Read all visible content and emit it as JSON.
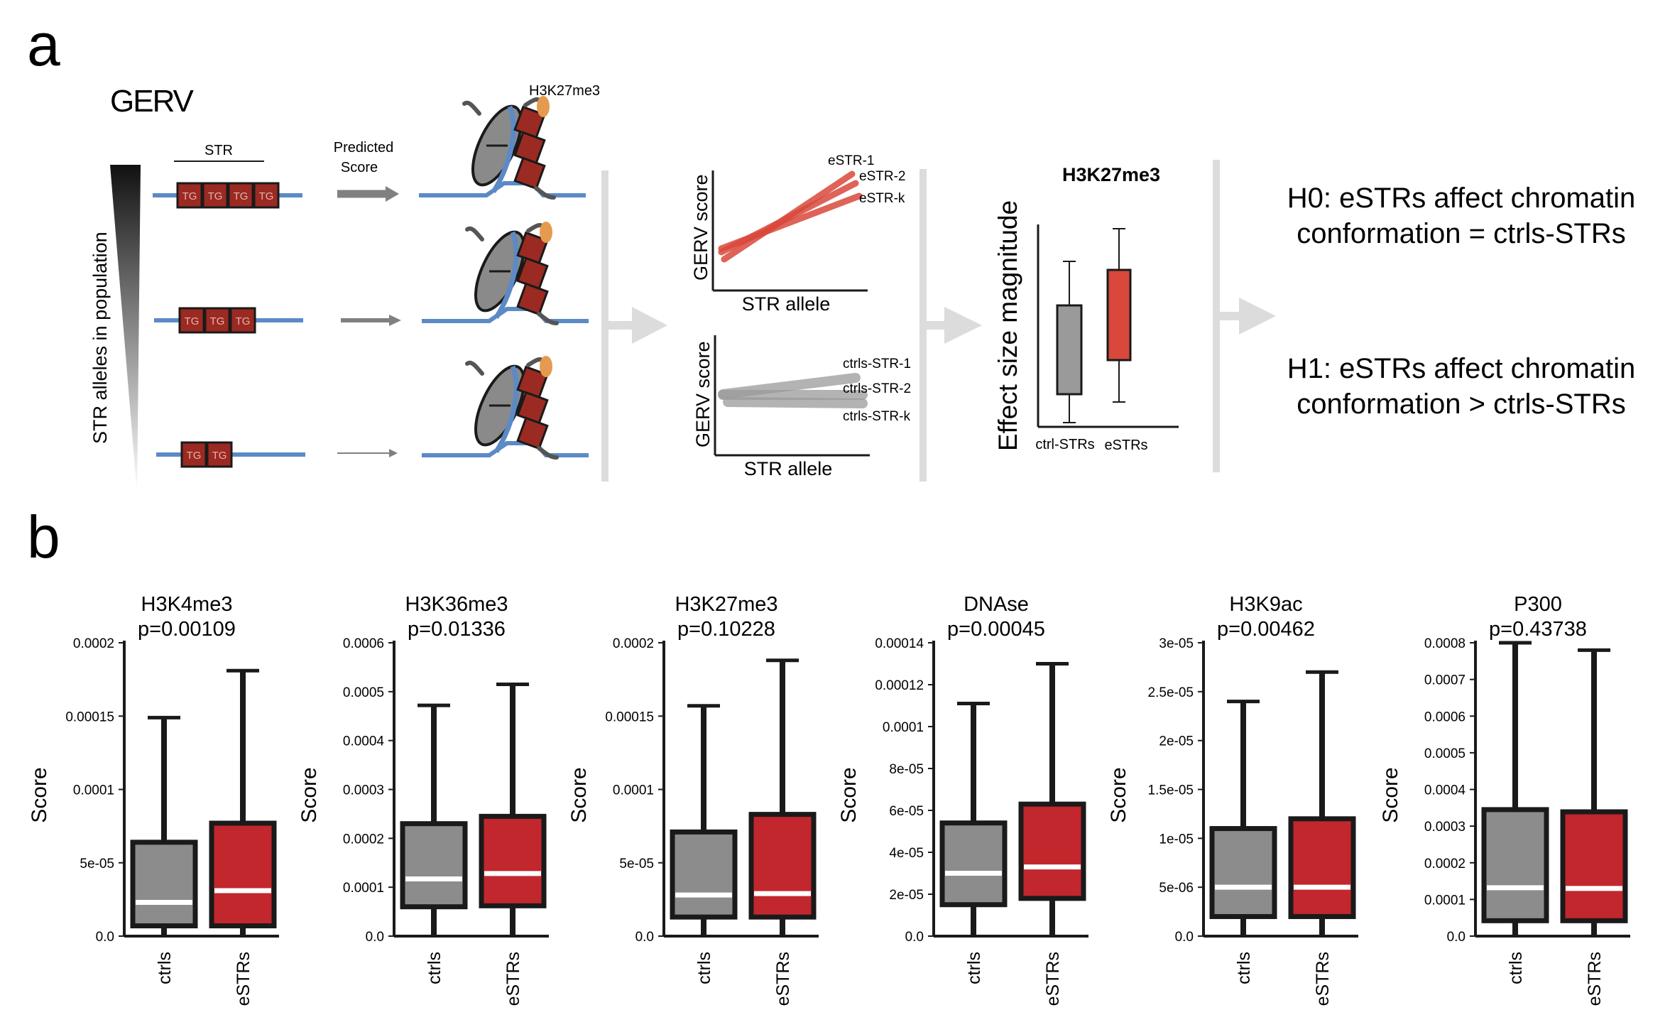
{
  "panel_a": {
    "letter": "a",
    "gerv_label": "GERV",
    "population_label": "STR alleles in population",
    "str_label": "STR",
    "repeat_unit": "TG",
    "predicted_label_1": "Predicted",
    "predicted_label_2": "Score",
    "mark_label": "H3K27me3",
    "estr_plot": {
      "ylabel": "GERV score",
      "xlabel": "STR allele",
      "lines": [
        "eSTR-1",
        "eSTR-2",
        "eSTR-k"
      ]
    },
    "ctrl_plot": {
      "ylabel": "GERV score",
      "xlabel": "STR allele",
      "lines": [
        "ctrls-STR-1",
        "ctrls-STR-2",
        "ctrls-STR-k"
      ]
    },
    "effect_plot": {
      "title": "H3K27me3",
      "ylabel": "Effect size magnitude",
      "categories": [
        "ctrl-STRs",
        "eSTRs"
      ]
    },
    "h0_line1": "H0: eSTRs affect chromatin",
    "h0_line2": "conformation = ctrls-STRs",
    "h1_line1": "H1: eSTRs affect chromatin",
    "h1_line2": "conformation > ctrls-STRs",
    "colors": {
      "estr_red": "#d9483b",
      "ctrl_gray": "#9a9a9a",
      "dna_blue": "#5b8ac6",
      "repeat_box": "#9b2a22",
      "mark": "#e69a4f",
      "arrow_gray": "#dcdcdc"
    }
  },
  "panel_b": {
    "letter": "b",
    "ylabel": "Score",
    "categories": [
      "ctrls",
      "eSTRs"
    ],
    "colors": {
      "ctrls": "#8c8c8c",
      "eSTRs": "#c1272d",
      "median": "#ffffff",
      "outline": "#1a1a1a"
    }
  },
  "chart_data": [
    {
      "type": "box",
      "title": "H3K4me3",
      "pvalue": "p=0.00109",
      "ylabel": "Score",
      "ylim": [
        0,
        0.0002
      ],
      "yticks": [
        "0.0",
        "5e-05",
        "0.0001",
        "0.00015",
        "0.0002"
      ],
      "ytick_values": [
        0,
        5e-05,
        0.0001,
        0.00015,
        0.0002
      ],
      "categories": [
        "ctrls",
        "eSTRs"
      ],
      "boxes": [
        {
          "name": "ctrls",
          "whislo": 0,
          "q1": 7e-06,
          "med": 2.3e-05,
          "q3": 6.4e-05,
          "whishi": 0.000149
        },
        {
          "name": "eSTRs",
          "whislo": 0,
          "q1": 7e-06,
          "med": 3.1e-05,
          "q3": 7.7e-05,
          "whishi": 0.000181
        }
      ]
    },
    {
      "type": "box",
      "title": "H3K36me3",
      "pvalue": "p=0.01336",
      "ylabel": "Score",
      "ylim": [
        0,
        0.0006
      ],
      "yticks": [
        "0.0",
        "0.0001",
        "0.0002",
        "0.0003",
        "0.0004",
        "0.0005",
        "0.0006"
      ],
      "ytick_values": [
        0,
        0.0001,
        0.0002,
        0.0003,
        0.0004,
        0.0005,
        0.0006
      ],
      "categories": [
        "ctrls",
        "eSTRs"
      ],
      "boxes": [
        {
          "name": "ctrls",
          "whislo": 0,
          "q1": 6e-05,
          "med": 0.000117,
          "q3": 0.00023,
          "whishi": 0.000472
        },
        {
          "name": "eSTRs",
          "whislo": 0,
          "q1": 6.2e-05,
          "med": 0.000128,
          "q3": 0.000245,
          "whishi": 0.000515
        }
      ]
    },
    {
      "type": "box",
      "title": "H3K27me3",
      "pvalue": "p=0.10228",
      "ylabel": "Score",
      "ylim": [
        0,
        0.0002
      ],
      "yticks": [
        "0.0",
        "5e-05",
        "0.0001",
        "0.00015",
        "0.0002"
      ],
      "ytick_values": [
        0,
        5e-05,
        0.0001,
        0.00015,
        0.0002
      ],
      "categories": [
        "ctrls",
        "eSTRs"
      ],
      "boxes": [
        {
          "name": "ctrls",
          "whislo": 0,
          "q1": 1.3e-05,
          "med": 2.8e-05,
          "q3": 7.1e-05,
          "whishi": 0.000157
        },
        {
          "name": "eSTRs",
          "whislo": 0,
          "q1": 1.3e-05,
          "med": 2.9e-05,
          "q3": 8.3e-05,
          "whishi": 0.000188
        }
      ]
    },
    {
      "type": "box",
      "title": "DNAse",
      "pvalue": "p=0.00045",
      "ylabel": "Score",
      "ylim": [
        0,
        0.00014
      ],
      "yticks": [
        "0.0",
        "2e-05",
        "4e-05",
        "6e-05",
        "8e-05",
        "0.0001",
        "0.00012",
        "0.00014"
      ],
      "ytick_values": [
        0,
        2e-05,
        4e-05,
        6e-05,
        8e-05,
        0.0001,
        0.00012,
        0.00014
      ],
      "categories": [
        "ctrls",
        "eSTRs"
      ],
      "boxes": [
        {
          "name": "ctrls",
          "whislo": 0,
          "q1": 1.5e-05,
          "med": 3e-05,
          "q3": 5.4e-05,
          "whishi": 0.000111
        },
        {
          "name": "eSTRs",
          "whislo": 0,
          "q1": 1.8e-05,
          "med": 3.3e-05,
          "q3": 6.3e-05,
          "whishi": 0.00013
        }
      ]
    },
    {
      "type": "box",
      "title": "H3K9ac",
      "pvalue": "p=0.00462",
      "ylabel": "Score",
      "ylim": [
        0,
        3e-05
      ],
      "yticks": [
        "0.0",
        "5e-06",
        "1e-05",
        "1.5e-05",
        "2e-05",
        "2.5e-05",
        "3e-05"
      ],
      "ytick_values": [
        0,
        5e-06,
        1e-05,
        1.5e-05,
        2e-05,
        2.5e-05,
        3e-05
      ],
      "categories": [
        "ctrls",
        "eSTRs"
      ],
      "boxes": [
        {
          "name": "ctrls",
          "whislo": 0,
          "q1": 2e-06,
          "med": 5e-06,
          "q3": 1.1e-05,
          "whishi": 2.4e-05
        },
        {
          "name": "eSTRs",
          "whislo": 0,
          "q1": 2e-06,
          "med": 5e-06,
          "q3": 1.2e-05,
          "whishi": 2.7e-05
        }
      ]
    },
    {
      "type": "box",
      "title": "P300",
      "pvalue": "p=0.43738",
      "ylabel": "Score",
      "ylim": [
        0,
        0.0008
      ],
      "yticks": [
        "0.0",
        "0.0001",
        "0.0002",
        "0.0003",
        "0.0004",
        "0.0005",
        "0.0006",
        "0.0007",
        "0.0008"
      ],
      "ytick_values": [
        0,
        0.0001,
        0.0002,
        0.0003,
        0.0004,
        0.0005,
        0.0006,
        0.0007,
        0.0008
      ],
      "categories": [
        "ctrls",
        "eSTRs"
      ],
      "boxes": [
        {
          "name": "ctrls",
          "whislo": 0,
          "q1": 4.2e-05,
          "med": 0.000132,
          "q3": 0.000345,
          "whishi": 0.0008
        },
        {
          "name": "eSTRs",
          "whislo": 0,
          "q1": 4.2e-05,
          "med": 0.00013,
          "q3": 0.000339,
          "whishi": 0.00078
        }
      ]
    }
  ]
}
